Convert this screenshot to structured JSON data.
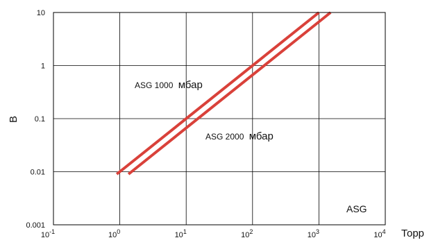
{
  "chart_data": {
    "type": "line",
    "xscale": "log",
    "yscale": "log",
    "xlim": [
      0.1,
      10000
    ],
    "ylim": [
      0.001,
      10
    ],
    "grid": true,
    "xlabel": "Торр",
    "ylabel": "В",
    "x_ticks": [
      {
        "value": 0.1,
        "base": "10",
        "exp": "-1"
      },
      {
        "value": 1,
        "base": "10",
        "exp": "0"
      },
      {
        "value": 10,
        "base": "10",
        "exp": "1"
      },
      {
        "value": 100,
        "base": "10",
        "exp": "2"
      },
      {
        "value": 1000,
        "base": "10",
        "exp": "3"
      },
      {
        "value": 10000,
        "base": "10",
        "exp": "4"
      }
    ],
    "y_ticks": [
      {
        "value": 0.001,
        "label": "0.001"
      },
      {
        "value": 0.01,
        "label": "0.01"
      },
      {
        "value": 0.1,
        "label": "0.1"
      },
      {
        "value": 1,
        "label": "1"
      },
      {
        "value": 10,
        "label": "10"
      }
    ],
    "series": [
      {
        "name": "ASG 1000 мбар",
        "color": "#d9413a",
        "points": [
          [
            0.9,
            0.009
          ],
          [
            1000,
            10
          ]
        ]
      },
      {
        "name": "ASG 2000 мбар",
        "color": "#d9413a",
        "points": [
          [
            1.35,
            0.009
          ],
          [
            1500,
            10
          ]
        ]
      }
    ],
    "annotations": [
      {
        "prefix": "ASG 1000",
        "unit": "мбар"
      },
      {
        "prefix": "ASG 2000",
        "unit": "мбар"
      }
    ],
    "corner_label": "ASG"
  }
}
